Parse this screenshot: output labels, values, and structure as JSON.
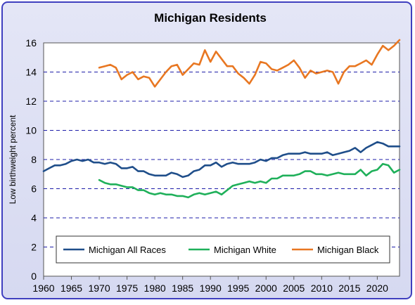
{
  "chart_data": {
    "type": "line",
    "title": "Michigan Residents",
    "ylabel": "Low birthweight percent",
    "xlabel": "",
    "xlim": [
      1960,
      2024
    ],
    "ylim": [
      0,
      16
    ],
    "xticks": [
      1960,
      1965,
      1970,
      1975,
      1980,
      1985,
      1990,
      1995,
      2000,
      2005,
      2010,
      2015,
      2020
    ],
    "yticks": [
      0,
      2,
      4,
      6,
      8,
      10,
      12,
      14,
      16
    ],
    "grid": true,
    "legend_position": "bottom",
    "series": [
      {
        "name": "Michigan All Races",
        "color": "#1f4e8a",
        "x": [
          1960,
          1961,
          1962,
          1963,
          1964,
          1965,
          1966,
          1967,
          1968,
          1969,
          1970,
          1971,
          1972,
          1973,
          1974,
          1975,
          1976,
          1977,
          1978,
          1979,
          1980,
          1981,
          1982,
          1983,
          1984,
          1985,
          1986,
          1987,
          1988,
          1989,
          1990,
          1991,
          1992,
          1993,
          1994,
          1995,
          1996,
          1997,
          1998,
          1999,
          2000,
          2001,
          2002,
          2003,
          2004,
          2005,
          2006,
          2007,
          2008,
          2009,
          2010,
          2011,
          2012,
          2013,
          2014,
          2015,
          2016,
          2017,
          2018,
          2019,
          2020,
          2021,
          2022,
          2023,
          2024
        ],
        "values": [
          7.2,
          7.4,
          7.6,
          7.6,
          7.7,
          7.9,
          8.0,
          7.9,
          8.0,
          7.8,
          7.8,
          7.7,
          7.8,
          7.7,
          7.4,
          7.4,
          7.5,
          7.2,
          7.2,
          7.0,
          6.9,
          6.9,
          6.9,
          7.1,
          7.0,
          6.8,
          6.9,
          7.2,
          7.3,
          7.6,
          7.6,
          7.8,
          7.5,
          7.7,
          7.8,
          7.7,
          7.7,
          7.7,
          7.8,
          8.0,
          7.9,
          8.1,
          8.1,
          8.3,
          8.4,
          8.4,
          8.4,
          8.5,
          8.4,
          8.4,
          8.4,
          8.5,
          8.3,
          8.4,
          8.5,
          8.6,
          8.8,
          8.5,
          8.8,
          9.0,
          9.2,
          9.1,
          8.9,
          8.9,
          8.9
        ]
      },
      {
        "name": "Michigan White",
        "color": "#1fb05a",
        "x": [
          1970,
          1971,
          1972,
          1973,
          1974,
          1975,
          1976,
          1977,
          1978,
          1979,
          1980,
          1981,
          1982,
          1983,
          1984,
          1985,
          1986,
          1987,
          1988,
          1989,
          1990,
          1991,
          1992,
          1993,
          1994,
          1995,
          1996,
          1997,
          1998,
          1999,
          2000,
          2001,
          2002,
          2003,
          2004,
          2005,
          2006,
          2007,
          2008,
          2009,
          2010,
          2011,
          2012,
          2013,
          2014,
          2015,
          2016,
          2017,
          2018,
          2019,
          2020,
          2021,
          2022,
          2023,
          2024
        ],
        "values": [
          6.6,
          6.4,
          6.3,
          6.3,
          6.2,
          6.1,
          6.1,
          5.9,
          5.9,
          5.7,
          5.6,
          5.7,
          5.6,
          5.6,
          5.5,
          5.5,
          5.4,
          5.6,
          5.7,
          5.6,
          5.7,
          5.8,
          5.6,
          5.9,
          6.2,
          6.3,
          6.4,
          6.5,
          6.4,
          6.5,
          6.4,
          6.7,
          6.7,
          6.9,
          6.9,
          6.9,
          7.0,
          7.2,
          7.2,
          7.0,
          7.0,
          6.9,
          7.0,
          7.1,
          7.0,
          7.0,
          7.0,
          7.3,
          6.9,
          7.2,
          7.3,
          7.7,
          7.6,
          7.1,
          7.3
        ]
      },
      {
        "name": "Michigan Black",
        "color": "#e87722",
        "x": [
          1970,
          1971,
          1972,
          1973,
          1974,
          1975,
          1976,
          1977,
          1978,
          1979,
          1980,
          1981,
          1982,
          1983,
          1984,
          1985,
          1986,
          1987,
          1988,
          1989,
          1990,
          1991,
          1992,
          1993,
          1994,
          1995,
          1996,
          1997,
          1998,
          1999,
          2000,
          2001,
          2002,
          2003,
          2004,
          2005,
          2006,
          2007,
          2008,
          2009,
          2010,
          2011,
          2012,
          2013,
          2014,
          2015,
          2016,
          2017,
          2018,
          2019,
          2020,
          2021,
          2022,
          2023,
          2024
        ],
        "values": [
          14.3,
          14.4,
          14.5,
          14.3,
          13.5,
          13.8,
          14.0,
          13.5,
          13.7,
          13.6,
          13.0,
          13.5,
          14.0,
          14.4,
          14.5,
          13.8,
          14.2,
          14.6,
          14.5,
          15.5,
          14.7,
          15.4,
          14.9,
          14.4,
          14.4,
          13.9,
          13.6,
          13.2,
          13.8,
          14.7,
          14.6,
          14.2,
          14.1,
          14.3,
          14.5,
          14.8,
          14.3,
          13.6,
          14.1,
          13.9,
          14.0,
          14.1,
          14.0,
          13.2,
          14.0,
          14.4,
          14.4,
          14.6,
          14.8,
          14.5,
          15.2,
          15.8,
          15.5,
          15.8,
          16.2
        ]
      }
    ]
  }
}
